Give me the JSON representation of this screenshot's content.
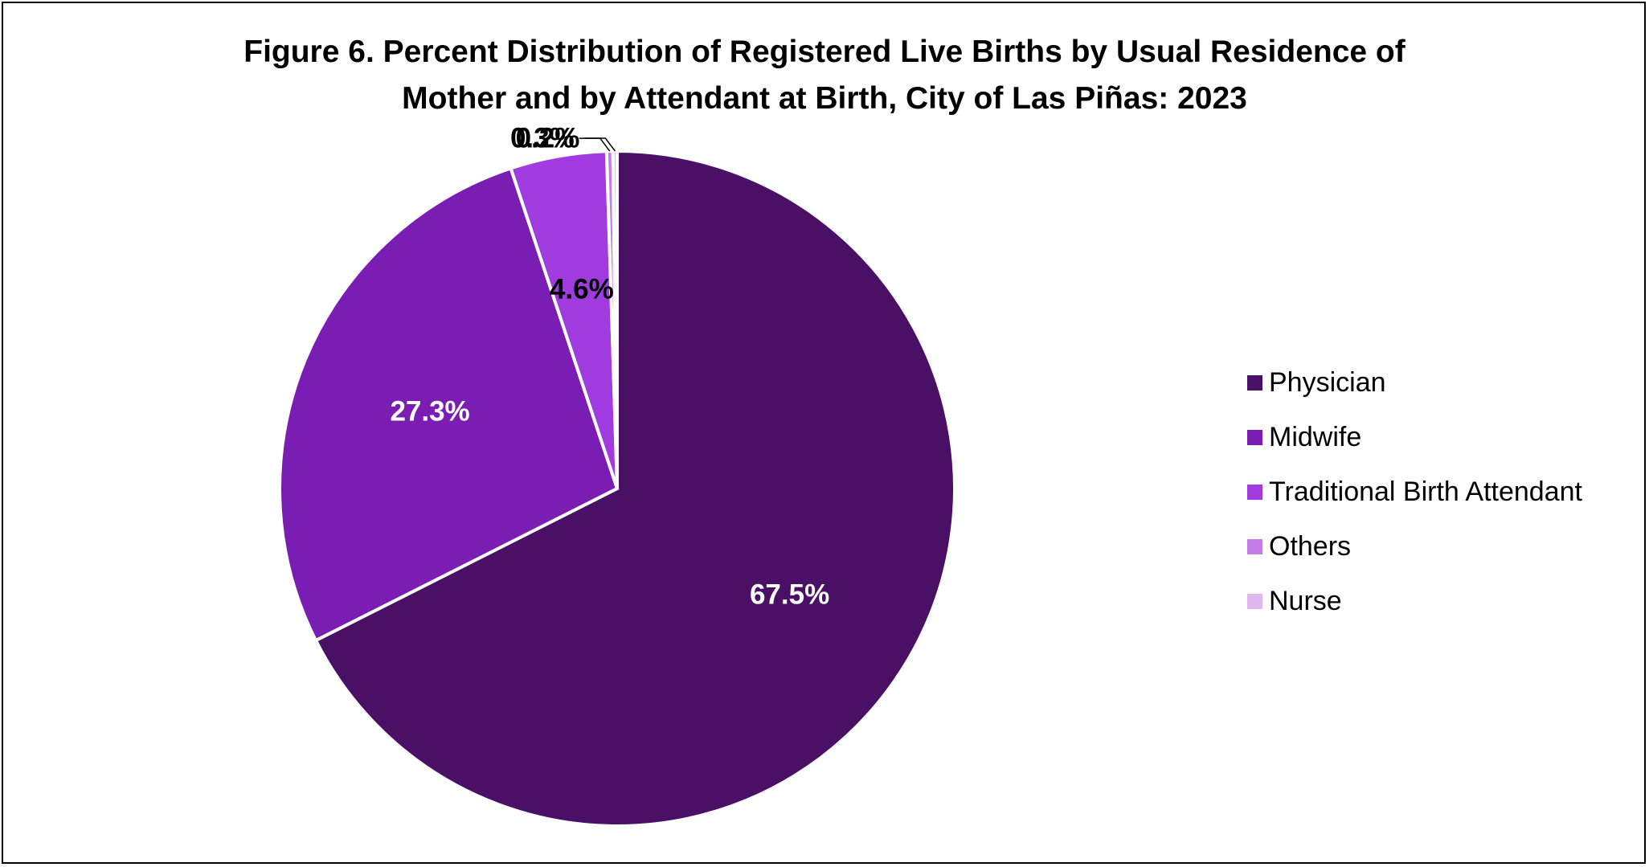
{
  "chart_data": {
    "type": "pie",
    "title": "Figure 6. Percent Distribution of Registered Live Births by Usual Residence of Mother and by Attendant at Birth, City of Las Piñas: 2023",
    "title_lines": [
      "Figure 6. Percent Distribution of Registered Live Births by Usual Residence of",
      "Mother and by Attendant at Birth, City of Las Piñas: 2023"
    ],
    "categories": [
      "Physician",
      "Midwife",
      "Traditional Birth Attendant",
      "Others",
      "Nurse"
    ],
    "values": [
      67.5,
      27.3,
      4.6,
      0.3,
      0.2
    ],
    "data_labels": [
      "67.5%",
      "27.3%",
      "4.6%",
      "0.3%",
      "0.2%"
    ],
    "colors": [
      "#4a1066",
      "#7a1db3",
      "#a03be0",
      "#c27de8",
      "#dfb8ef"
    ],
    "label_colors": [
      "#ffffff",
      "#ffffff",
      "#000000",
      "#000000",
      "#000000"
    ],
    "start_angle_deg": 0,
    "direction": "clockwise",
    "legend_position": "right",
    "slice_border_color": "#ffffff"
  }
}
